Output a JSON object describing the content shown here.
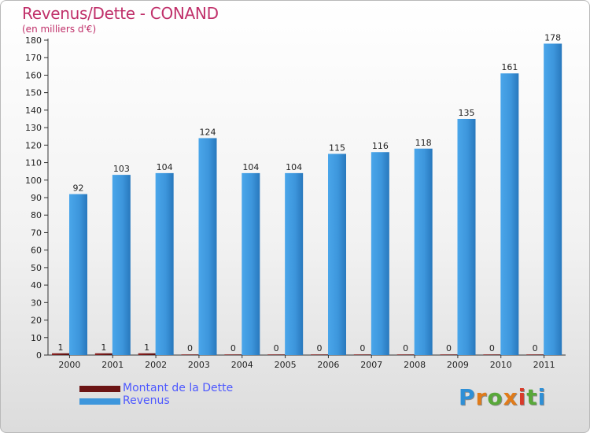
{
  "title": "Revenus/Dette - CONAND",
  "subtitle": "(en milliers d'€)",
  "colors": {
    "debt": "#6b1414",
    "revenue": "#3d96dc",
    "title": "#c0306a",
    "legend_text": "#4d58ff"
  },
  "legend": [
    {
      "label": "Montant de la Dette",
      "color": "#6b1414"
    },
    {
      "label": "Revenus",
      "color": "#3d96dc"
    }
  ],
  "logo": {
    "text": "Proxiti"
  },
  "chart_data": {
    "type": "bar",
    "title": "Revenus/Dette - CONAND",
    "subtitle": "(en milliers d'€)",
    "categories": [
      "2000",
      "2001",
      "2002",
      "2003",
      "2004",
      "2005",
      "2006",
      "2007",
      "2008",
      "2009",
      "2010",
      "2011"
    ],
    "series": [
      {
        "name": "Montant de la Dette",
        "values": [
          1,
          1,
          1,
          0,
          0,
          0,
          0,
          0,
          0,
          0,
          0,
          0
        ]
      },
      {
        "name": "Revenus",
        "values": [
          92,
          103,
          104,
          124,
          104,
          104,
          115,
          116,
          118,
          135,
          161,
          178
        ]
      }
    ],
    "ylim": [
      0,
      180
    ],
    "yticks": [
      0,
      10,
      20,
      30,
      40,
      50,
      60,
      70,
      80,
      90,
      100,
      110,
      120,
      130,
      140,
      150,
      160,
      170,
      180
    ],
    "grid": false,
    "legend_position": "bottom-left"
  }
}
